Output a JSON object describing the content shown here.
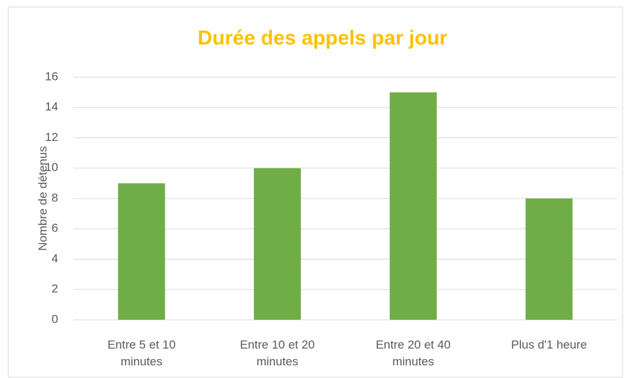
{
  "chart_data": {
    "type": "bar",
    "title": "Durée des appels par jour",
    "y_label": "Nombre de détenus",
    "categories": [
      "Entre 5 et 10 minutes",
      "Entre 10 et 20 minutes",
      "Entre 20 et 40 minutes",
      "Plus d'1 heure"
    ],
    "values": [
      9,
      10,
      15,
      8
    ],
    "color": "#70AD47",
    "ylim": [
      0,
      16
    ],
    "yticks": [
      0,
      2,
      4,
      6,
      8,
      10,
      12,
      14,
      16
    ],
    "grid": true
  }
}
